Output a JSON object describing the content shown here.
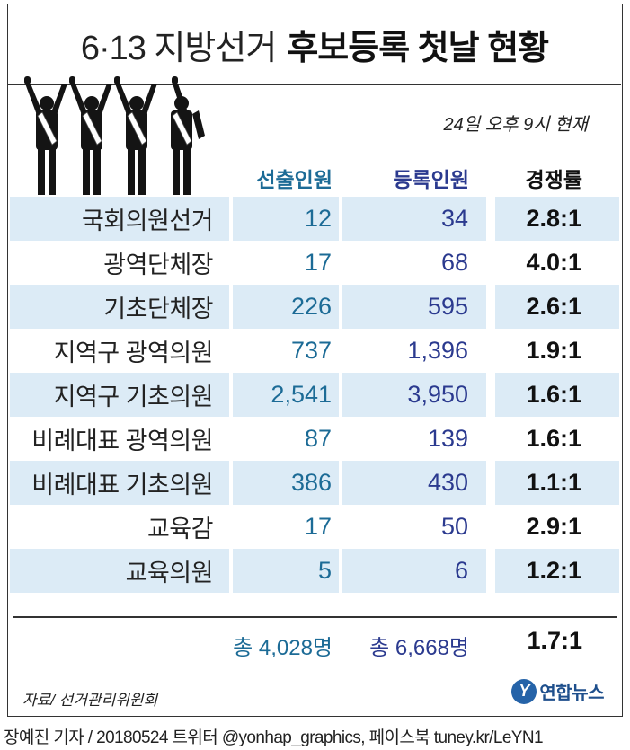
{
  "title": {
    "light": "6·13 지방선거",
    "bold": "후보등록 첫날 현황"
  },
  "timestamp": "24일 오후 9시 현재",
  "chart_data": {
    "type": "table",
    "columns": [
      "",
      "선출인원",
      "등록인원",
      "경쟁률"
    ],
    "rows": [
      {
        "name": "국회의원선거",
        "elected": "12",
        "registered": "34",
        "ratio": "2.8:1"
      },
      {
        "name": "광역단체장",
        "elected": "17",
        "registered": "68",
        "ratio": "4.0:1"
      },
      {
        "name": "기초단체장",
        "elected": "226",
        "registered": "595",
        "ratio": "2.6:1"
      },
      {
        "name": "지역구 광역의원",
        "elected": "737",
        "registered": "1,396",
        "ratio": "1.9:1"
      },
      {
        "name": "지역구 기초의원",
        "elected": "2,541",
        "registered": "3,950",
        "ratio": "1.6:1"
      },
      {
        "name": "비례대표 광역의원",
        "elected": "87",
        "registered": "139",
        "ratio": "1.6:1"
      },
      {
        "name": "비례대표 기초의원",
        "elected": "386",
        "registered": "430",
        "ratio": "1.1:1"
      },
      {
        "name": "교육감",
        "elected": "17",
        "registered": "50",
        "ratio": "2.9:1"
      },
      {
        "name": "교육의원",
        "elected": "5",
        "registered": "6",
        "ratio": "1.2:1"
      }
    ],
    "totals": {
      "elected": "총 4,028명",
      "registered": "총 6,668명",
      "ratio": "1.7:1"
    }
  },
  "source": "자료/ 선거관리위원회",
  "logo": {
    "mark": "Y",
    "text": "연합뉴스"
  },
  "credit": "장예진 기자 / 20180524 트위터 @yonhap_graphics, 페이스북 tuney.kr/LeYN1",
  "colors": {
    "elected": "#1c6b96",
    "registered": "#2b3a8f",
    "row_shade": "#dcebf6"
  },
  "illustration": "candidates-raising-hands-icon"
}
